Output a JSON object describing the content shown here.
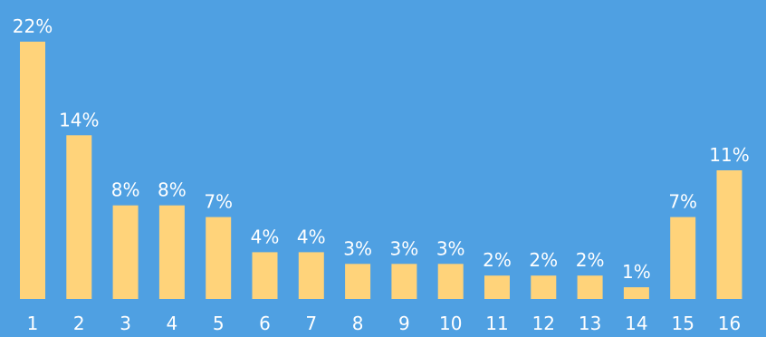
{
  "chart_data": {
    "type": "bar",
    "categories": [
      "1",
      "2",
      "3",
      "4",
      "5",
      "6",
      "7",
      "8",
      "9",
      "10",
      "11",
      "12",
      "13",
      "14",
      "15",
      "16"
    ],
    "values": [
      22,
      14,
      8,
      8,
      7,
      4,
      4,
      3,
      3,
      3,
      2,
      2,
      2,
      1,
      7,
      11
    ],
    "labels": [
      "22%",
      "14%",
      "8%",
      "8%",
      "7%",
      "4%",
      "4%",
      "3%",
      "3%",
      "3%",
      "2%",
      "2%",
      "2%",
      "1%",
      "7%",
      "11%"
    ],
    "title": "",
    "xlabel": "",
    "ylabel": "",
    "ylim": [
      0,
      22
    ],
    "grid": false,
    "legend": "none",
    "colors": {
      "background": "#4FA0E2",
      "bar": "#FFD37A",
      "text": "#FFFFFF"
    }
  }
}
